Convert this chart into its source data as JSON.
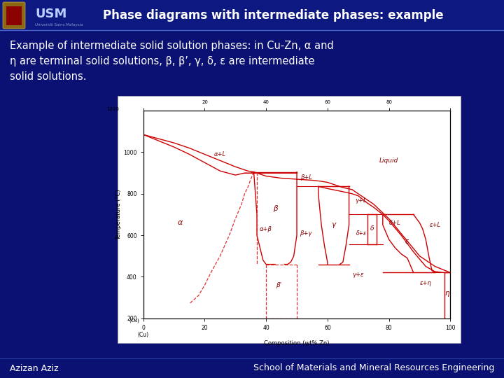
{
  "bg_color": "#0a1172",
  "title_text": "Phase diagrams with intermediate phases: example",
  "title_color": "#ffffff",
  "title_fontsize": 12,
  "title_bold": true,
  "body_text": "Example of intermediate solid solution phases: in Cu-Zn, α and\nη are terminal solid solutions, β, β’, γ, δ, ε are intermediate\nsolid solutions.",
  "body_color": "#ffffff",
  "body_fontsize": 10.5,
  "footer_left": "Azizan Aziz",
  "footer_right": "School of Materials and Mineral Resources Engineering",
  "footer_color": "#ffffff",
  "footer_fontsize": 9,
  "diagram_line_color": "#cc0000",
  "diagram_dashed_color": "#dd3333",
  "diagram_bg": "#ffffff"
}
